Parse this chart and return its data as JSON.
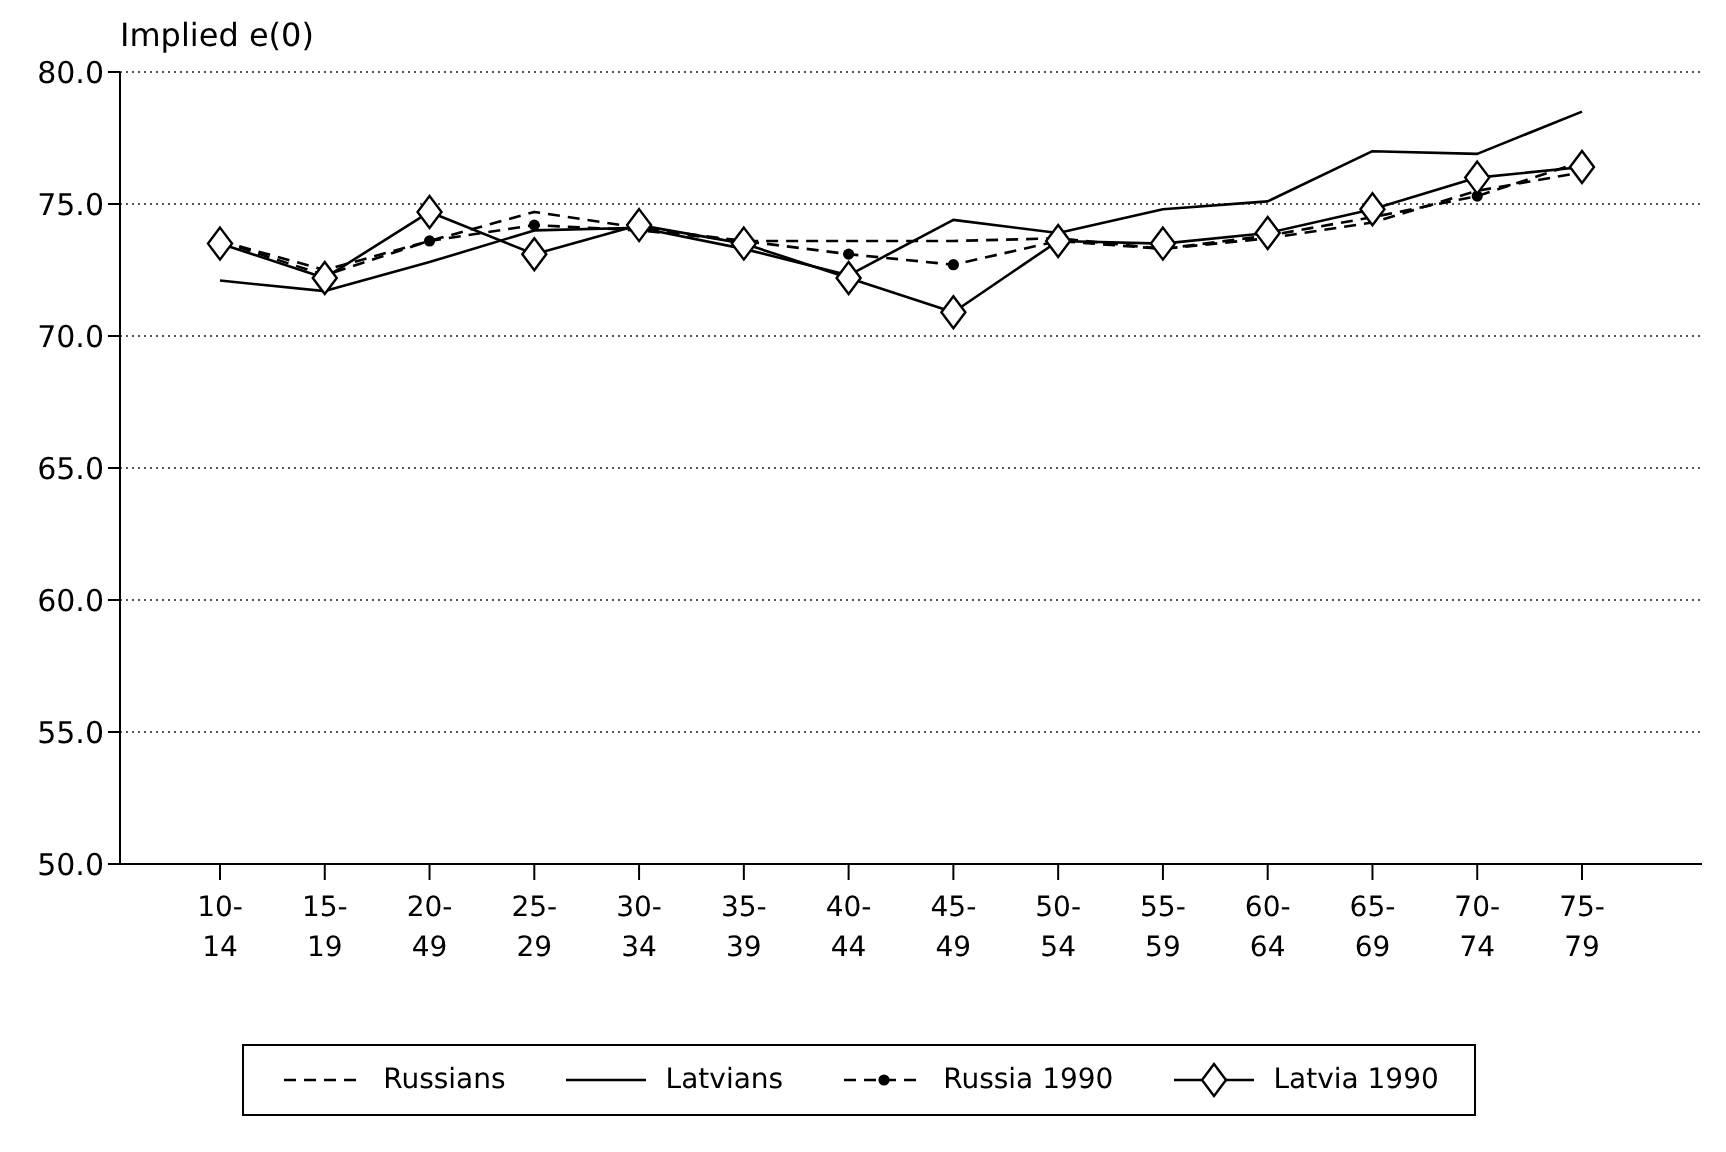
{
  "chart_data": {
    "type": "line",
    "ylabel": "Implied e(0)",
    "categories": [
      "10-14",
      "15-19",
      "20-49",
      "25-29",
      "30-34",
      "35-39",
      "40-44",
      "45-49",
      "50-54",
      "55-59",
      "60-64",
      "65-69",
      "70-74",
      "75-79"
    ],
    "ylim": [
      50,
      80
    ],
    "yticks": [
      {
        "value": 50,
        "label": "50.0"
      },
      {
        "value": 55,
        "label": "55.0"
      },
      {
        "value": 60,
        "label": "60.0"
      },
      {
        "value": 65,
        "label": "65.0"
      },
      {
        "value": 70,
        "label": "70.0"
      },
      {
        "value": 75,
        "label": "75.0"
      },
      {
        "value": 80,
        "label": "80.0"
      }
    ],
    "grid": "y",
    "legend": "bottom",
    "series": [
      {
        "name": "Russians",
        "color": "#000000",
        "line_style": "dashed",
        "marker": "none",
        "values": [
          73.6,
          72.5,
          73.6,
          74.7,
          74.1,
          73.6,
          73.6,
          73.6,
          73.7,
          73.3,
          73.7,
          74.3,
          75.5,
          76.2
        ]
      },
      {
        "name": "Latvians",
        "color": "#000000",
        "line_style": "solid",
        "marker": "none",
        "values": [
          72.1,
          71.7,
          72.8,
          74.0,
          74.1,
          73.3,
          72.3,
          74.4,
          73.9,
          74.8,
          75.1,
          77.0,
          76.9,
          78.5
        ]
      },
      {
        "name": "Russia 1990",
        "color": "#000000",
        "line_style": "dashed",
        "marker": "circle",
        "values": [
          73.6,
          72.3,
          73.6,
          74.2,
          74.0,
          73.6,
          73.1,
          72.7,
          73.6,
          73.3,
          73.8,
          74.5,
          75.3,
          76.6
        ]
      },
      {
        "name": "Latvia 1990",
        "color": "#000000",
        "line_style": "solid",
        "marker": "diamond",
        "values": [
          73.5,
          72.2,
          74.7,
          73.1,
          74.2,
          73.5,
          72.2,
          70.9,
          73.6,
          73.5,
          73.9,
          74.8,
          76.0,
          76.4
        ]
      }
    ]
  }
}
